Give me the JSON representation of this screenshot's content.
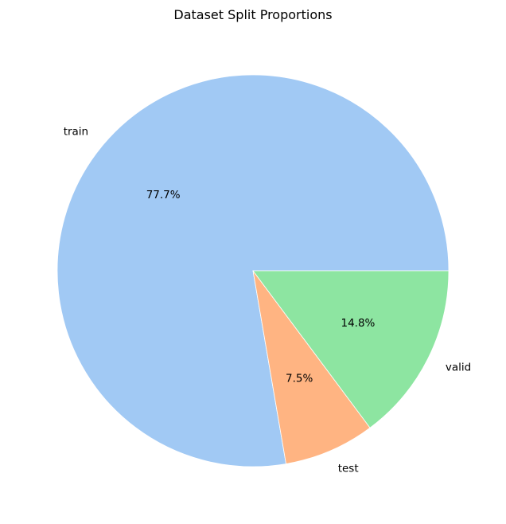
{
  "chart_data": {
    "type": "pie",
    "title": "Dataset Split Proportions",
    "start_angle_deg": 0,
    "direction": "counterclockwise",
    "slices": [
      {
        "label": "train",
        "value": 77.7,
        "pct_label": "77.7%",
        "color": "#a1c9f4"
      },
      {
        "label": "test",
        "value": 7.5,
        "pct_label": "7.5%",
        "color": "#ffb482"
      },
      {
        "label": "valid",
        "value": 14.8,
        "pct_label": "14.8%",
        "color": "#8de5a1"
      }
    ]
  }
}
